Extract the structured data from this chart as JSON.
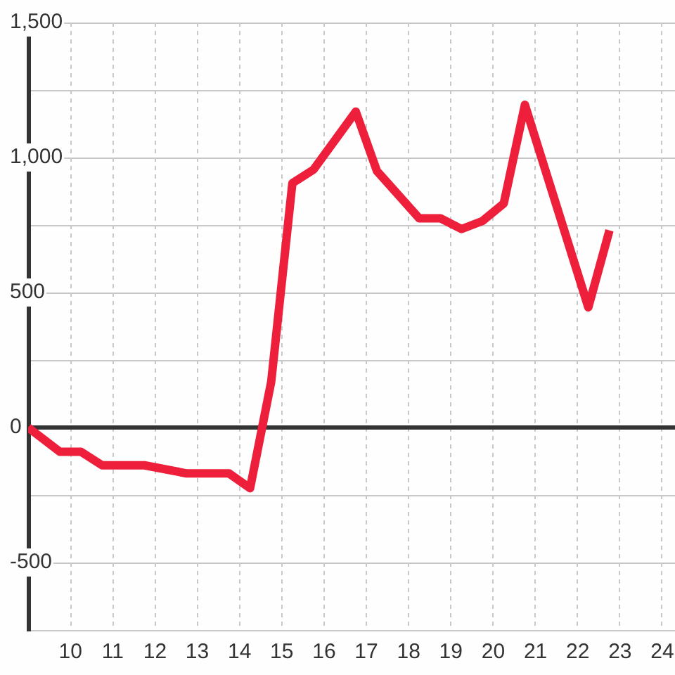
{
  "chart_data": {
    "type": "line",
    "x": [
      9,
      9.75,
      10.25,
      10.75,
      11.75,
      12.75,
      13.75,
      14.25,
      14.75,
      15.25,
      15.75,
      16.75,
      17.25,
      18.25,
      18.75,
      19.25,
      19.75,
      20.25,
      20.75,
      22.25,
      22.75
    ],
    "series": [
      {
        "color": "#ee1f3b",
        "values": [
          0,
          -90,
          -90,
          -140,
          -140,
          -170,
          -170,
          -225,
          170,
          905,
          955,
          1170,
          950,
          775,
          775,
          735,
          765,
          830,
          1195,
          445,
          730
        ]
      }
    ],
    "xlim": [
      9,
      24.3
    ],
    "xticks": [
      10,
      11,
      12,
      13,
      14,
      15,
      16,
      17,
      18,
      19,
      20,
      21,
      22,
      23,
      24
    ],
    "ylim": [
      -750,
      1500
    ],
    "yticks": [
      -500,
      {
        "value": -250,
        "label": null
      },
      0,
      {
        "value": 250,
        "label": null
      },
      500,
      {
        "value": 750,
        "label": null
      },
      {
        "value": 1000,
        "label": "1,000"
      },
      {
        "value": 1250,
        "label": null
      },
      {
        "value": 1500,
        "label": "1,500"
      }
    ],
    "grid": true,
    "marker": "none",
    "line_style": "solid",
    "ref_lines": [
      {
        "axis": "y",
        "value": 0,
        "color": "#333333"
      }
    ]
  }
}
